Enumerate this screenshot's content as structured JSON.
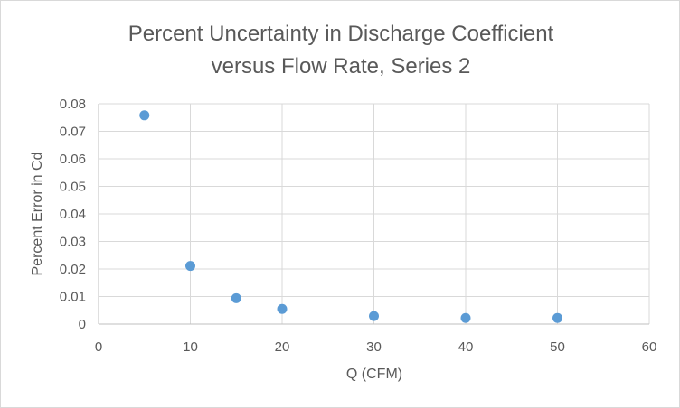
{
  "chart_data": {
    "type": "scatter",
    "title_line1": "Percent Uncertainty in Discharge Coefficient",
    "title_line2": "versus Flow Rate, Series 2",
    "xlabel": "Q (CFM)",
    "ylabel": "Percent Error in Cd",
    "xlim": [
      0,
      60
    ],
    "ylim": [
      0,
      0.08
    ],
    "x_ticks": [
      "0",
      "10",
      "20",
      "30",
      "40",
      "50",
      "60"
    ],
    "y_ticks": [
      "0",
      "0.01",
      "0.02",
      "0.03",
      "0.04",
      "0.05",
      "0.06",
      "0.07",
      "0.08"
    ],
    "grid": true,
    "legend": "none",
    "marker_color": "#5b9bd5",
    "points": [
      {
        "x": 5,
        "y": 0.0758
      },
      {
        "x": 10,
        "y": 0.0211
      },
      {
        "x": 15,
        "y": 0.0094
      },
      {
        "x": 20,
        "y": 0.0055
      },
      {
        "x": 30,
        "y": 0.0029
      },
      {
        "x": 40,
        "y": 0.0022
      },
      {
        "x": 50,
        "y": 0.0022
      }
    ]
  }
}
